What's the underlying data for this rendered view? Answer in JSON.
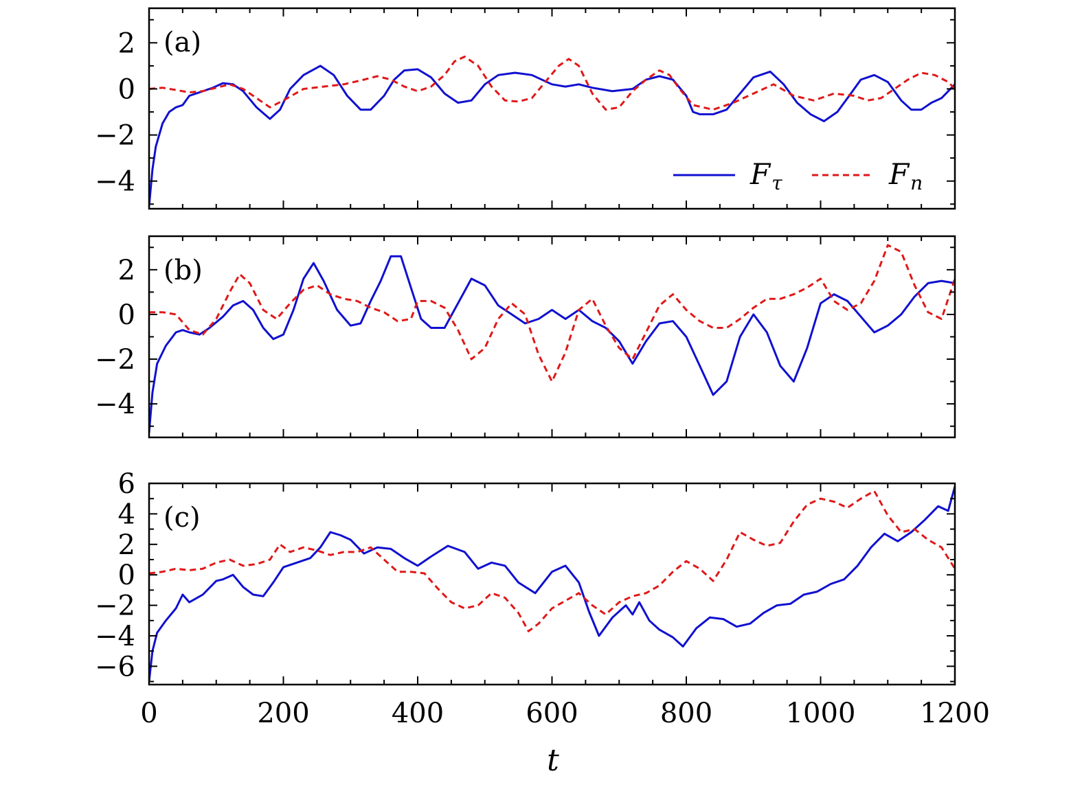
{
  "chart_data": {
    "type": "line",
    "xlabel": "t",
    "xlim": [
      0,
      1200
    ],
    "x_ticks": [
      "0",
      "200",
      "400",
      "600",
      "800",
      "1000",
      "1200"
    ],
    "legend": {
      "placement": "bottom-right of panel (a)",
      "entries": [
        {
          "name": "F",
          "subscript": "τ",
          "series": "F_tau",
          "color": "#1010d0",
          "style": "solid"
        },
        {
          "name": "F",
          "subscript": "n",
          "series": "F_n",
          "color": "#e01818",
          "style": "dashed"
        }
      ]
    },
    "panels": [
      {
        "label": "(a)",
        "ylim": [
          -5.2,
          3.5
        ],
        "y_ticks": [
          2,
          0,
          -2,
          -4
        ],
        "y_tick_labels": [
          "2",
          "0",
          "−2",
          "−4"
        ],
        "series": [
          {
            "name": "F_tau",
            "color": "#1010d0",
            "style": "solid",
            "x": [
              0,
              5,
              10,
              20,
              30,
              40,
              50,
              60,
              70,
              80,
              95,
              110,
              125,
              140,
              160,
              180,
              195,
              210,
              230,
              255,
              275,
              295,
              315,
              330,
              350,
              365,
              380,
              400,
              420,
              440,
              460,
              480,
              500,
              520,
              545,
              570,
              600,
              620,
              640,
              660,
              690,
              720,
              740,
              760,
              780,
              800,
              810,
              820,
              840,
              860,
              880,
              900,
              925,
              945,
              965,
              985,
              1005,
              1025,
              1045,
              1060,
              1080,
              1100,
              1120,
              1135,
              1150,
              1165,
              1180,
              1200
            ],
            "y": [
              -5.1,
              -3.5,
              -2.5,
              -1.5,
              -1.0,
              -0.8,
              -0.7,
              -0.3,
              -0.2,
              -0.1,
              0.05,
              0.25,
              0.2,
              -0.1,
              -0.8,
              -1.3,
              -0.9,
              0.0,
              0.6,
              1.0,
              0.6,
              -0.3,
              -0.9,
              -0.9,
              -0.3,
              0.4,
              0.8,
              0.85,
              0.5,
              -0.2,
              -0.6,
              -0.5,
              0.2,
              0.6,
              0.7,
              0.6,
              0.2,
              0.1,
              0.2,
              0.05,
              -0.1,
              0.0,
              0.4,
              0.55,
              0.4,
              -0.3,
              -1.0,
              -1.1,
              -1.1,
              -0.9,
              -0.2,
              0.5,
              0.75,
              0.2,
              -0.6,
              -1.1,
              -1.4,
              -1.0,
              -0.2,
              0.4,
              0.6,
              0.3,
              -0.5,
              -0.9,
              -0.9,
              -0.6,
              -0.4,
              0.2
            ]
          },
          {
            "name": "F_n",
            "color": "#e01818",
            "style": "dashed",
            "x": [
              0,
              20,
              40,
              60,
              80,
              100,
              120,
              140,
              160,
              180,
              200,
              230,
              260,
              290,
              320,
              340,
              360,
              380,
              400,
              420,
              440,
              455,
              470,
              490,
              510,
              530,
              550,
              570,
              590,
              610,
              625,
              640,
              660,
              680,
              700,
              720,
              740,
              760,
              775,
              790,
              810,
              840,
              870,
              900,
              930,
              960,
              990,
              1020,
              1050,
              1070,
              1090,
              1110,
              1130,
              1150,
              1170,
              1190,
              1200
            ],
            "y": [
              0.0,
              0.05,
              -0.05,
              -0.15,
              -0.1,
              0.05,
              0.2,
              0.0,
              -0.4,
              -0.8,
              -0.5,
              0.0,
              0.1,
              0.2,
              0.4,
              0.55,
              0.4,
              0.1,
              -0.1,
              0.1,
              0.6,
              1.2,
              1.4,
              1.0,
              0.1,
              -0.5,
              -0.55,
              -0.4,
              0.3,
              1.0,
              1.3,
              1.0,
              -0.2,
              -0.9,
              -0.8,
              -0.1,
              0.4,
              0.8,
              0.6,
              0.0,
              -0.7,
              -0.9,
              -0.6,
              -0.2,
              0.2,
              -0.3,
              -0.5,
              -0.2,
              -0.3,
              -0.5,
              -0.4,
              0.0,
              0.4,
              0.7,
              0.6,
              0.3,
              0.0
            ]
          }
        ]
      },
      {
        "label": "(b)",
        "ylim": [
          -5.5,
          3.5
        ],
        "y_ticks": [
          2,
          0,
          -2,
          -4
        ],
        "y_tick_labels": [
          "2",
          "0",
          "−2",
          "−4"
        ],
        "series": [
          {
            "name": "F_tau",
            "color": "#1010d0",
            "style": "solid",
            "x": [
              0,
              5,
              12,
              25,
              40,
              50,
              60,
              75,
              90,
              110,
              125,
              140,
              155,
              170,
              185,
              200,
              215,
              230,
              245,
              260,
              280,
              300,
              315,
              330,
              345,
              360,
              375,
              390,
              405,
              420,
              440,
              460,
              480,
              500,
              520,
              540,
              560,
              580,
              600,
              620,
              640,
              660,
              680,
              700,
              720,
              740,
              760,
              780,
              800,
              820,
              840,
              860,
              880,
              900,
              920,
              940,
              960,
              980,
              1000,
              1020,
              1040,
              1060,
              1080,
              1100,
              1120,
              1140,
              1160,
              1180,
              1200
            ],
            "y": [
              -5.3,
              -3.5,
              -2.2,
              -1.4,
              -0.8,
              -0.7,
              -0.8,
              -0.9,
              -0.6,
              -0.1,
              0.4,
              0.6,
              0.2,
              -0.6,
              -1.1,
              -0.9,
              0.2,
              1.6,
              2.3,
              1.5,
              0.2,
              -0.5,
              -0.4,
              0.6,
              1.5,
              2.6,
              2.6,
              1.2,
              -0.2,
              -0.6,
              -0.6,
              0.5,
              1.6,
              1.3,
              0.4,
              0.0,
              -0.4,
              -0.2,
              0.2,
              -0.2,
              0.2,
              -0.3,
              -0.6,
              -1.2,
              -2.2,
              -1.2,
              -0.4,
              -0.3,
              -1.0,
              -2.3,
              -3.6,
              -3.0,
              -1.0,
              0.0,
              -0.8,
              -2.3,
              -3.0,
              -1.5,
              0.5,
              0.9,
              0.6,
              -0.1,
              -0.8,
              -0.5,
              0.0,
              0.8,
              1.4,
              1.5,
              1.4
            ]
          },
          {
            "name": "F_n",
            "color": "#e01818",
            "style": "dashed",
            "x": [
              0,
              20,
              40,
              60,
              80,
              100,
              120,
              135,
              150,
              170,
              190,
              210,
              230,
              250,
              270,
              290,
              310,
              330,
              350,
              370,
              390,
              400,
              420,
              440,
              460,
              480,
              500,
              520,
              540,
              560,
              580,
              600,
              620,
              640,
              660,
              680,
              700,
              720,
              740,
              760,
              780,
              800,
              820,
              840,
              860,
              880,
              900,
              920,
              940,
              960,
              980,
              1000,
              1020,
              1040,
              1060,
              1080,
              1100,
              1120,
              1140,
              1160,
              1180,
              1200
            ],
            "y": [
              0.1,
              0.1,
              0.0,
              -0.7,
              -0.9,
              -0.2,
              1.0,
              1.8,
              1.4,
              0.2,
              -0.2,
              0.5,
              1.1,
              1.3,
              0.9,
              0.7,
              0.6,
              0.3,
              0.1,
              -0.3,
              -0.2,
              0.6,
              0.6,
              0.3,
              -0.7,
              -2.0,
              -1.5,
              -0.2,
              0.5,
              0.0,
              -1.8,
              -3.0,
              -1.7,
              0.2,
              0.7,
              -0.5,
              -1.5,
              -2.0,
              -0.8,
              0.4,
              0.9,
              0.2,
              -0.3,
              -0.6,
              -0.6,
              -0.2,
              0.3,
              0.7,
              0.7,
              0.9,
              1.2,
              1.6,
              0.6,
              0.2,
              0.5,
              1.5,
              3.1,
              2.8,
              1.3,
              0.1,
              -0.2,
              1.6
            ]
          }
        ]
      },
      {
        "label": "(c)",
        "ylim": [
          -7.2,
          6.0
        ],
        "y_ticks": [
          6,
          4,
          2,
          0,
          -2,
          -4,
          -6
        ],
        "y_tick_labels": [
          "6",
          "4",
          "2",
          "0",
          "−2",
          "−4",
          "−6"
        ],
        "series": [
          {
            "name": "F_tau",
            "color": "#1010d0",
            "style": "solid",
            "x": [
              0,
              5,
              12,
              25,
              40,
              50,
              60,
              80,
              100,
              110,
              125,
              140,
              155,
              170,
              185,
              200,
              220,
              240,
              255,
              270,
              285,
              300,
              320,
              340,
              360,
              380,
              400,
              420,
              445,
              470,
              490,
              510,
              530,
              550,
              575,
              600,
              620,
              640,
              655,
              670,
              690,
              710,
              720,
              730,
              745,
              760,
              780,
              795,
              815,
              835,
              855,
              875,
              895,
              915,
              935,
              955,
              975,
              995,
              1015,
              1035,
              1055,
              1075,
              1095,
              1115,
              1135,
              1155,
              1175,
              1190,
              1200
            ],
            "y": [
              -7.0,
              -5.0,
              -3.8,
              -3.0,
              -2.2,
              -1.3,
              -1.8,
              -1.3,
              -0.4,
              -0.3,
              0.0,
              -0.8,
              -1.3,
              -1.4,
              -0.5,
              0.5,
              0.8,
              1.1,
              1.8,
              2.8,
              2.6,
              2.3,
              1.4,
              1.8,
              1.7,
              1.1,
              0.6,
              1.2,
              1.9,
              1.5,
              0.4,
              0.8,
              0.6,
              -0.5,
              -1.2,
              0.2,
              0.6,
              -0.5,
              -2.4,
              -4.0,
              -2.8,
              -2.0,
              -2.6,
              -1.8,
              -3.0,
              -3.6,
              -4.1,
              -4.7,
              -3.5,
              -2.8,
              -2.9,
              -3.4,
              -3.2,
              -2.5,
              -2.0,
              -1.9,
              -1.3,
              -1.1,
              -0.6,
              -0.3,
              0.6,
              1.8,
              2.7,
              2.2,
              2.8,
              3.6,
              4.5,
              4.2,
              5.8
            ]
          },
          {
            "name": "F_n",
            "color": "#e01818",
            "style": "dashed",
            "x": [
              0,
              20,
              40,
              60,
              80,
              100,
              120,
              140,
              160,
              180,
              195,
              210,
              230,
              250,
              270,
              290,
              310,
              330,
              350,
              370,
              390,
              410,
              430,
              450,
              470,
              490,
              510,
              530,
              550,
              565,
              580,
              600,
              620,
              640,
              660,
              680,
              700,
              720,
              740,
              760,
              780,
              800,
              820,
              840,
              860,
              880,
              900,
              920,
              940,
              960,
              980,
              1000,
              1020,
              1040,
              1060,
              1080,
              1100,
              1120,
              1140,
              1160,
              1180,
              1200
            ],
            "y": [
              0.1,
              0.2,
              0.4,
              0.3,
              0.4,
              0.8,
              1.0,
              0.6,
              0.7,
              1.0,
              2.0,
              1.5,
              1.8,
              1.6,
              1.3,
              1.5,
              1.5,
              1.8,
              1.0,
              0.2,
              0.2,
              0.1,
              -0.9,
              -1.8,
              -2.2,
              -2.0,
              -1.2,
              -1.5,
              -2.5,
              -3.7,
              -3.2,
              -2.2,
              -1.7,
              -1.2,
              -2.0,
              -2.6,
              -1.8,
              -1.4,
              -1.2,
              -0.7,
              0.2,
              0.9,
              0.4,
              -0.4,
              1.0,
              2.8,
              2.3,
              1.9,
              2.1,
              3.5,
              4.6,
              5.0,
              4.8,
              4.4,
              5.0,
              5.5,
              3.9,
              2.8,
              3.0,
              2.3,
              1.8,
              0.4
            ]
          }
        ]
      }
    ]
  }
}
